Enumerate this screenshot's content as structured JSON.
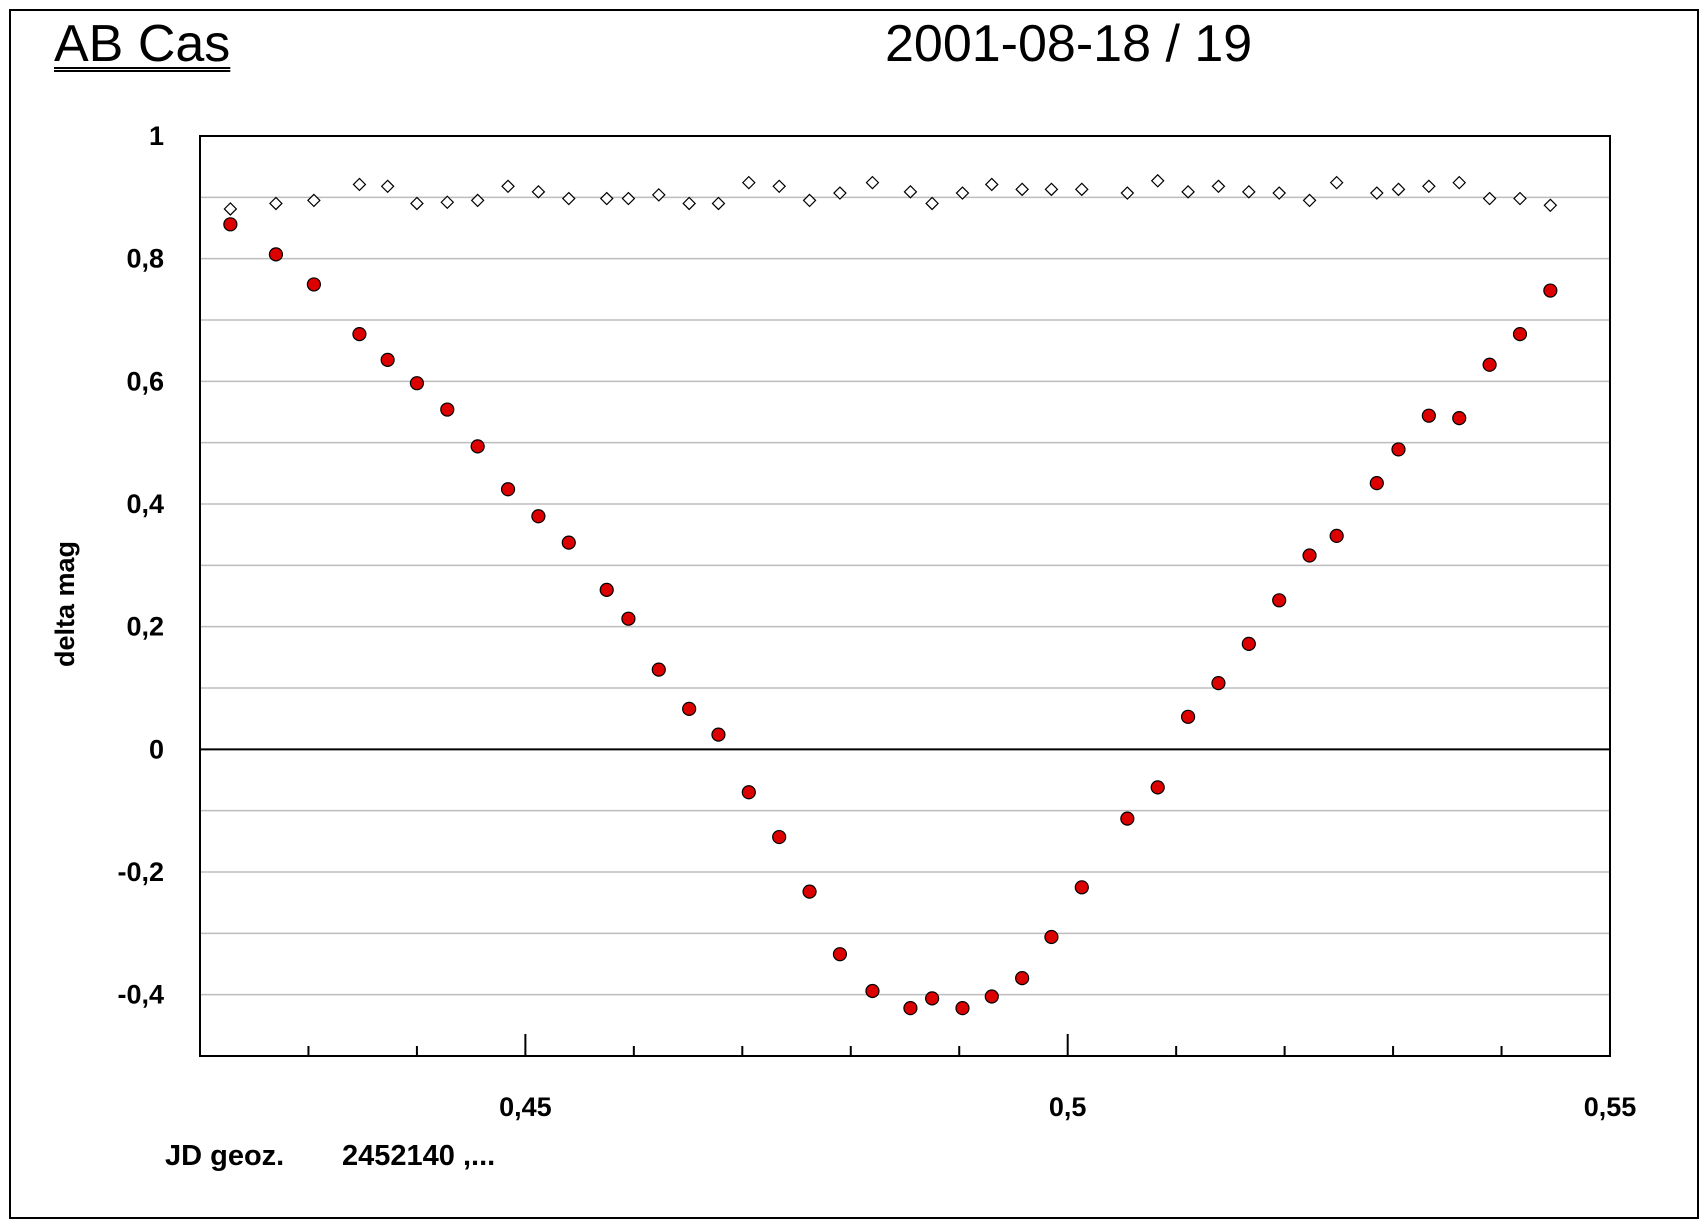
{
  "chart_data": {
    "type": "scatter",
    "title": "AB Cas",
    "subtitle": "2001-08-18 / 19",
    "xlabel": "JD geoz.",
    "xlabel_suffix": "2452140 ,...",
    "ylabel": "delta mag",
    "xlim": [
      0.42,
      0.55
    ],
    "ylim": [
      -0.5,
      1.0
    ],
    "x_ticks": [
      0.45,
      0.5,
      0.55
    ],
    "x_tick_labels": [
      "0,45",
      "0,5",
      "0,55"
    ],
    "x_minor_ticks": [
      0.43,
      0.44,
      0.46,
      0.47,
      0.48,
      0.49,
      0.51,
      0.52,
      0.53,
      0.54
    ],
    "y_ticks": [
      -0.4,
      -0.2,
      0,
      0.2,
      0.4,
      0.6,
      0.8,
      1.0
    ],
    "y_tick_labels": [
      "-0,4",
      "-0,2",
      "0",
      "0,2",
      "0,4",
      "0,6",
      "0,8",
      "1"
    ],
    "y_minor_gridlines": [
      -0.5,
      -0.3,
      -0.1,
      0.1,
      0.3,
      0.5,
      0.7,
      0.9
    ],
    "grid": true,
    "series": [
      {
        "marker": "filled-circle",
        "color": "#dd0000",
        "points": [
          [
            0.4228,
            0.856
          ],
          [
            0.427,
            0.807
          ],
          [
            0.4305,
            0.758
          ],
          [
            0.4347,
            0.677
          ],
          [
            0.4373,
            0.635
          ],
          [
            0.44,
            0.597
          ],
          [
            0.4428,
            0.554
          ],
          [
            0.4456,
            0.494
          ],
          [
            0.4484,
            0.424
          ],
          [
            0.4512,
            0.38
          ],
          [
            0.454,
            0.337
          ],
          [
            0.4575,
            0.26
          ],
          [
            0.4595,
            0.213
          ],
          [
            0.4623,
            0.13
          ],
          [
            0.4651,
            0.066
          ],
          [
            0.4678,
            0.024
          ],
          [
            0.4706,
            -0.07
          ],
          [
            0.4734,
            -0.143
          ],
          [
            0.4762,
            -0.232
          ],
          [
            0.479,
            -0.334
          ],
          [
            0.482,
            -0.394
          ],
          [
            0.4855,
            -0.422
          ],
          [
            0.4875,
            -0.406
          ],
          [
            0.4903,
            -0.422
          ],
          [
            0.493,
            -0.403
          ],
          [
            0.4958,
            -0.373
          ],
          [
            0.4985,
            -0.306
          ],
          [
            0.5013,
            -0.225
          ],
          [
            0.5055,
            -0.113
          ],
          [
            0.5083,
            -0.062
          ],
          [
            0.5111,
            0.053
          ],
          [
            0.5139,
            0.108
          ],
          [
            0.5167,
            0.172
          ],
          [
            0.5195,
            0.243
          ],
          [
            0.5223,
            0.316
          ],
          [
            0.5248,
            0.348
          ],
          [
            0.5285,
            0.434
          ],
          [
            0.5305,
            0.489
          ],
          [
            0.5333,
            0.544
          ],
          [
            0.5361,
            0.54
          ],
          [
            0.5389,
            0.627
          ],
          [
            0.5417,
            0.677
          ],
          [
            0.5445,
            0.748
          ]
        ]
      },
      {
        "marker": "open-diamond",
        "color": "#000000",
        "points": [
          [
            0.4228,
            0.881
          ],
          [
            0.427,
            0.89
          ],
          [
            0.4305,
            0.895
          ],
          [
            0.4347,
            0.921
          ],
          [
            0.4373,
            0.918
          ],
          [
            0.44,
            0.89
          ],
          [
            0.4428,
            0.892
          ],
          [
            0.4456,
            0.895
          ],
          [
            0.4484,
            0.918
          ],
          [
            0.4512,
            0.909
          ],
          [
            0.454,
            0.898
          ],
          [
            0.4575,
            0.898
          ],
          [
            0.4595,
            0.898
          ],
          [
            0.4623,
            0.904
          ],
          [
            0.4651,
            0.89
          ],
          [
            0.4678,
            0.89
          ],
          [
            0.4706,
            0.924
          ],
          [
            0.4734,
            0.918
          ],
          [
            0.4762,
            0.895
          ],
          [
            0.479,
            0.907
          ],
          [
            0.482,
            0.924
          ],
          [
            0.4855,
            0.909
          ],
          [
            0.4875,
            0.89
          ],
          [
            0.4903,
            0.907
          ],
          [
            0.493,
            0.921
          ],
          [
            0.4958,
            0.913
          ],
          [
            0.4985,
            0.913
          ],
          [
            0.5013,
            0.913
          ],
          [
            0.5055,
            0.907
          ],
          [
            0.5083,
            0.927
          ],
          [
            0.5111,
            0.909
          ],
          [
            0.5139,
            0.918
          ],
          [
            0.5167,
            0.909
          ],
          [
            0.5195,
            0.907
          ],
          [
            0.5223,
            0.895
          ],
          [
            0.5248,
            0.924
          ],
          [
            0.5285,
            0.907
          ],
          [
            0.5305,
            0.913
          ],
          [
            0.5333,
            0.918
          ],
          [
            0.5361,
            0.924
          ],
          [
            0.5389,
            0.898
          ],
          [
            0.5417,
            0.898
          ],
          [
            0.5445,
            0.887
          ]
        ]
      }
    ]
  }
}
